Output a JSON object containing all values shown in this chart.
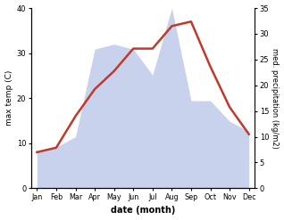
{
  "months": [
    "Jan",
    "Feb",
    "Mar",
    "Apr",
    "May",
    "Jun",
    "Jul",
    "Aug",
    "Sep",
    "Oct",
    "Nov",
    "Dec"
  ],
  "max_temp": [
    8,
    9,
    16,
    22,
    26,
    31,
    31,
    36,
    37,
    27,
    18,
    12
  ],
  "precipitation": [
    7,
    8,
    10,
    27,
    28,
    27,
    22,
    35,
    17,
    17,
    13,
    11
  ],
  "temp_ylim": [
    0,
    40
  ],
  "precip_ylim": [
    0,
    35
  ],
  "temp_color": "#c0392b",
  "precip_fill_color": "#b8c4e8",
  "title": "",
  "xlabel": "date (month)",
  "ylabel_left": "max temp (C)",
  "ylabel_right": "med. precipitation (kg/m2)",
  "temp_yticks": [
    0,
    10,
    20,
    30,
    40
  ],
  "precip_yticks": [
    0,
    5,
    10,
    15,
    20,
    25,
    30,
    35
  ],
  "background_color": "#ffffff",
  "line_width": 1.8
}
